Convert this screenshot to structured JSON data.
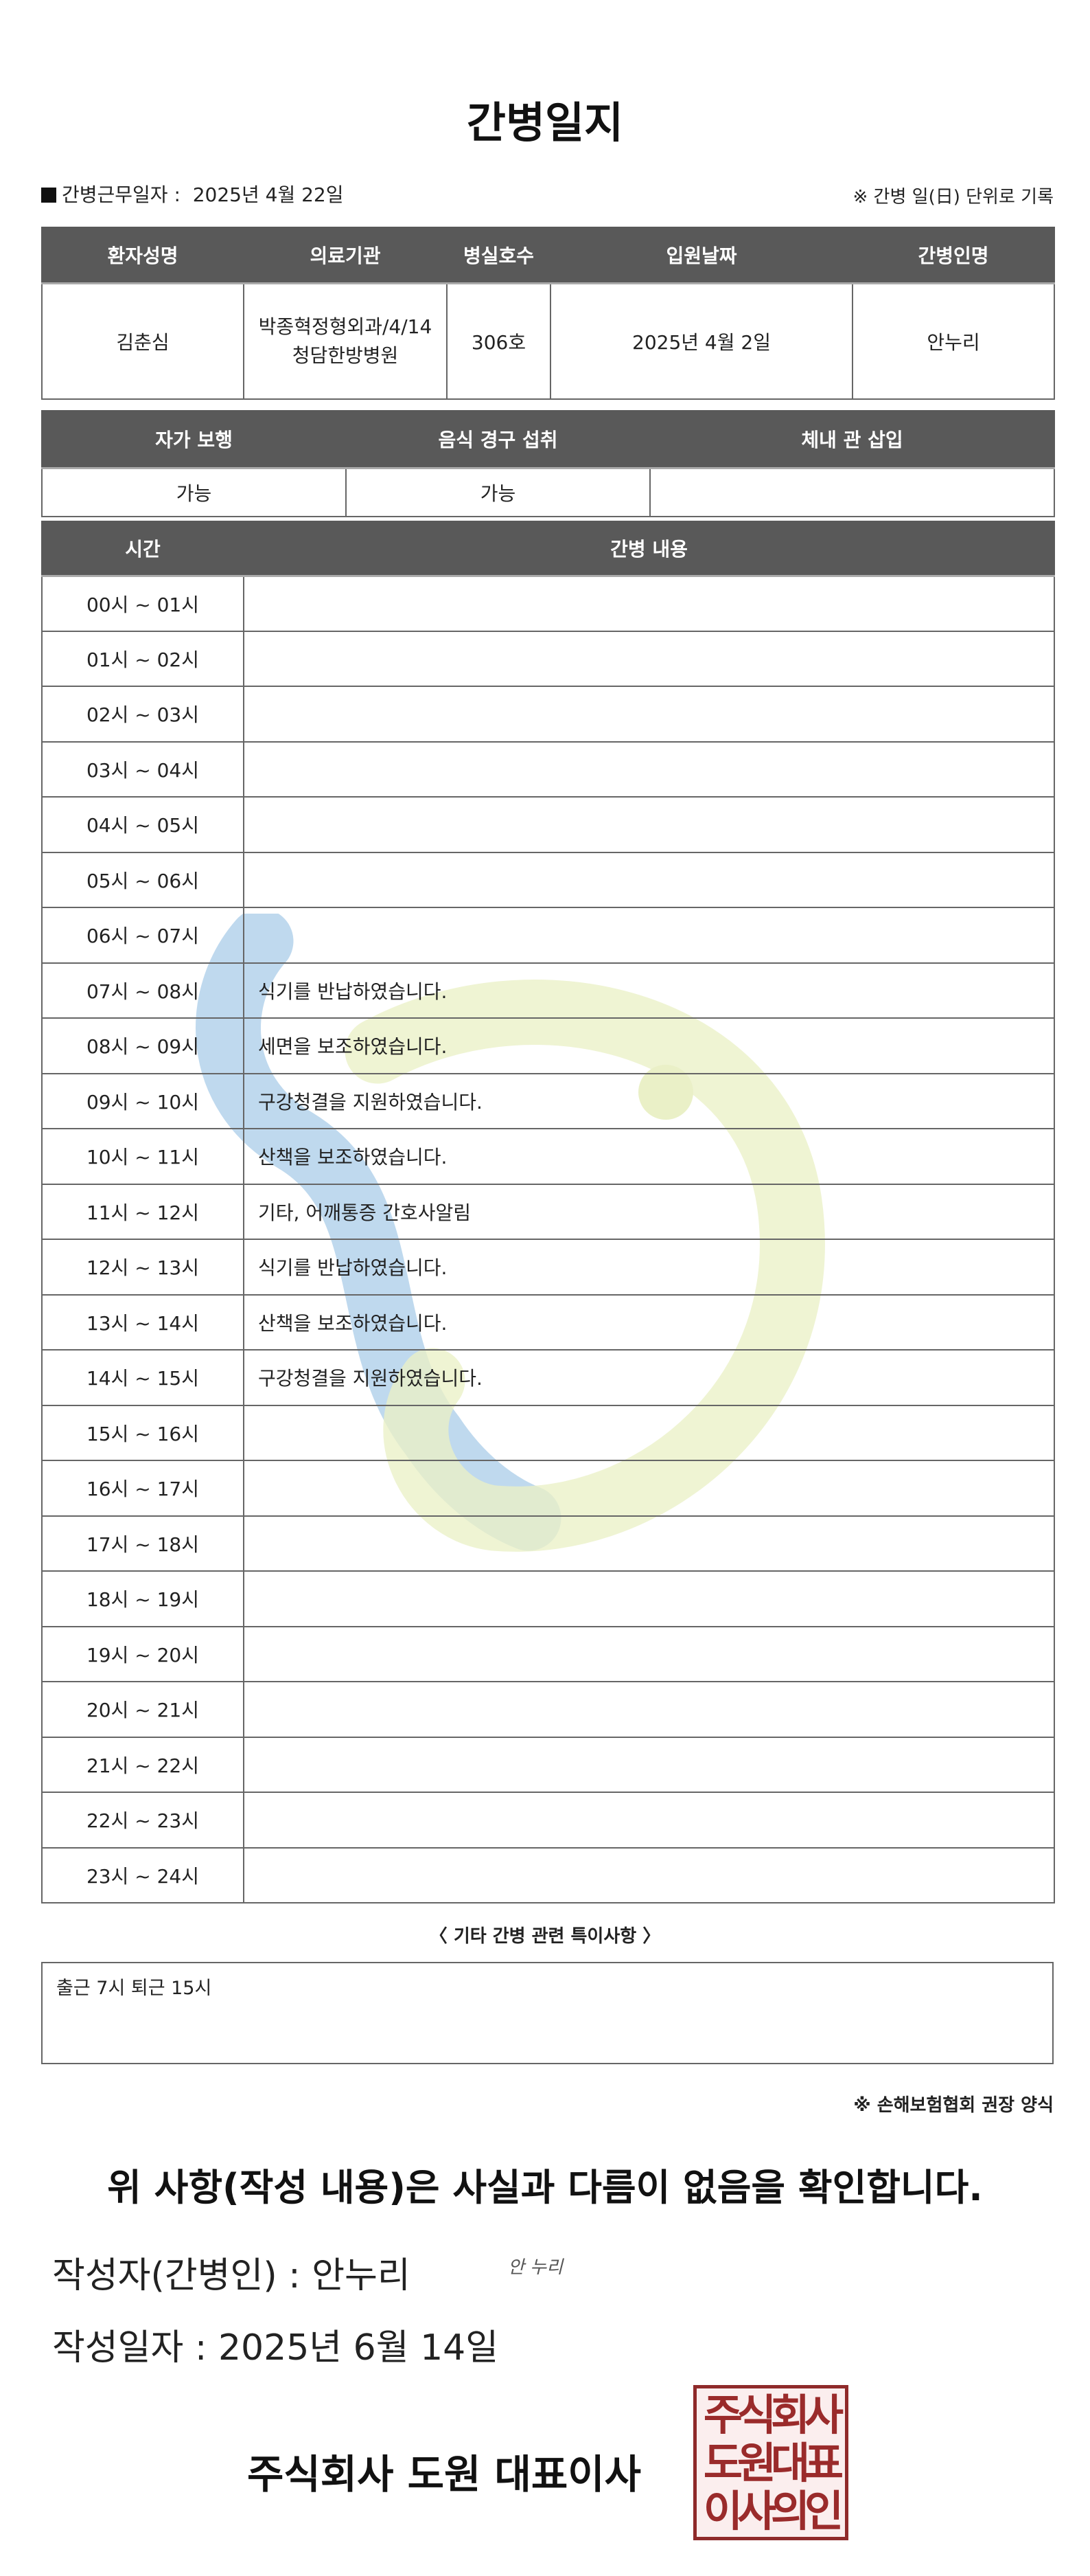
{
  "title": "간병일지",
  "info": {
    "label": "간병근무일자 :",
    "date": "2025년 4월 22일",
    "unit_note": "※ 간병 일(日) 단위로 기록"
  },
  "patient_table": {
    "headers": [
      "환자성명",
      "의료기관",
      "병실호수",
      "입원날짜",
      "간병인명"
    ],
    "values": [
      "김춘심",
      "박종혁정형외과/4/14청담한방병원",
      "306호",
      "2025년 4월 2일",
      "안누리"
    ]
  },
  "status_table": {
    "headers": [
      "자가 보행",
      "음식 경구 섭취",
      "체내 관 삽입"
    ],
    "values": [
      "가능",
      "가능",
      ""
    ]
  },
  "log_table": {
    "headers": [
      "시간",
      "간병 내용"
    ],
    "rows": [
      {
        "time": "00시 ~ 01시",
        "content": ""
      },
      {
        "time": "01시 ~ 02시",
        "content": ""
      },
      {
        "time": "02시 ~ 03시",
        "content": ""
      },
      {
        "time": "03시 ~ 04시",
        "content": ""
      },
      {
        "time": "04시 ~ 05시",
        "content": ""
      },
      {
        "time": "05시 ~ 06시",
        "content": ""
      },
      {
        "time": "06시 ~ 07시",
        "content": ""
      },
      {
        "time": "07시 ~ 08시",
        "content": "식기를 반납하였습니다."
      },
      {
        "time": "08시 ~ 09시",
        "content": "세면을 보조하였습니다."
      },
      {
        "time": "09시 ~ 10시",
        "content": "구강청결을 지원하였습니다."
      },
      {
        "time": "10시 ~ 11시",
        "content": "산책을 보조하였습니다."
      },
      {
        "time": "11시 ~ 12시",
        "content": "기타, 어깨통증 간호사알림"
      },
      {
        "time": "12시 ~ 13시",
        "content": "식기를 반납하였습니다."
      },
      {
        "time": "13시 ~ 14시",
        "content": "산책을 보조하였습니다."
      },
      {
        "time": "14시 ~ 15시",
        "content": "구강청결을 지원하였습니다."
      },
      {
        "time": "15시 ~ 16시",
        "content": ""
      },
      {
        "time": "16시 ~ 17시",
        "content": ""
      },
      {
        "time": "17시 ~ 18시",
        "content": ""
      },
      {
        "time": "18시 ~ 19시",
        "content": ""
      },
      {
        "time": "19시 ~ 20시",
        "content": ""
      },
      {
        "time": "20시 ~ 21시",
        "content": ""
      },
      {
        "time": "21시 ~ 22시",
        "content": ""
      },
      {
        "time": "22시 ~ 23시",
        "content": ""
      },
      {
        "time": "23시 ~ 24시",
        "content": ""
      }
    ]
  },
  "notes": {
    "title": "〈 기타 간병 관련 특이사항 〉",
    "content": "출근 7시 퇴근 15시"
  },
  "assoc_note": "※ 손해보험협회 권장 양식",
  "confirm": "위 사항(작성 내용)은 사실과 다름이 없음을 확인합니다.",
  "writer": {
    "label": "작성자(간병인) :  안누리",
    "signature": "안 누리"
  },
  "written_date": "작성일자 :  2025년 6월 14일",
  "company": "주식회사 도원  대표이사",
  "stamp": {
    "text": "주식회사도원대표이사의인",
    "color": "#9a2b2b"
  },
  "watermark_colors": [
    "#1e7bc4",
    "#b5cc3a"
  ]
}
